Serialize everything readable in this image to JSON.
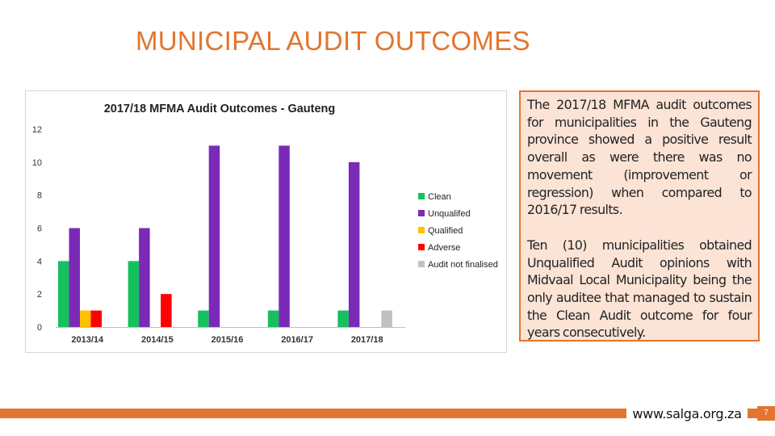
{
  "slide": {
    "title": "MUNICIPAL AUDIT OUTCOMES",
    "paragraphs": [
      "The 2017/18 MFMA audit outcomes for municipalities in the Gauteng province showed a positive result overall as were there was no movement (improvement or regression) when compared to 2016/17 results.",
      "Ten (10) municipalities obtained Unqualified Audit opinions with Midvaal Local Municipality being the only auditee that managed to sustain the Clean Audit outcome for four years consecutively."
    ],
    "footer_url": "www.salga.org.za",
    "page_number": "7"
  },
  "colors": {
    "accent": "#e2752f",
    "text_box_fill": "#fbe3d6"
  },
  "chart_data": {
    "type": "bar",
    "title": "2017/18 MFMA Audit Outcomes - Gauteng",
    "categories": [
      "2013/14",
      "2014/15",
      "2015/16",
      "2016/17",
      "2017/18"
    ],
    "ylim": [
      0,
      12
    ],
    "yticks": [
      0,
      2,
      4,
      6,
      8,
      10,
      12
    ],
    "legend_position": "right",
    "grid": false,
    "series": [
      {
        "name": "Clean",
        "color": "#16c05e",
        "values": [
          4,
          4,
          1,
          1,
          1
        ]
      },
      {
        "name": "Unqualifed",
        "color": "#7b2ab8",
        "values": [
          6,
          6,
          11,
          11,
          10
        ]
      },
      {
        "name": "Qualified",
        "color": "#ffc000",
        "values": [
          1,
          0,
          0,
          0,
          0
        ]
      },
      {
        "name": "Adverse",
        "color": "#ff0000",
        "values": [
          1,
          2,
          0,
          0,
          0
        ]
      },
      {
        "name": "Audit not finalised",
        "color": "#c0c0c0",
        "values": [
          0,
          0,
          0,
          0,
          1
        ]
      }
    ]
  }
}
